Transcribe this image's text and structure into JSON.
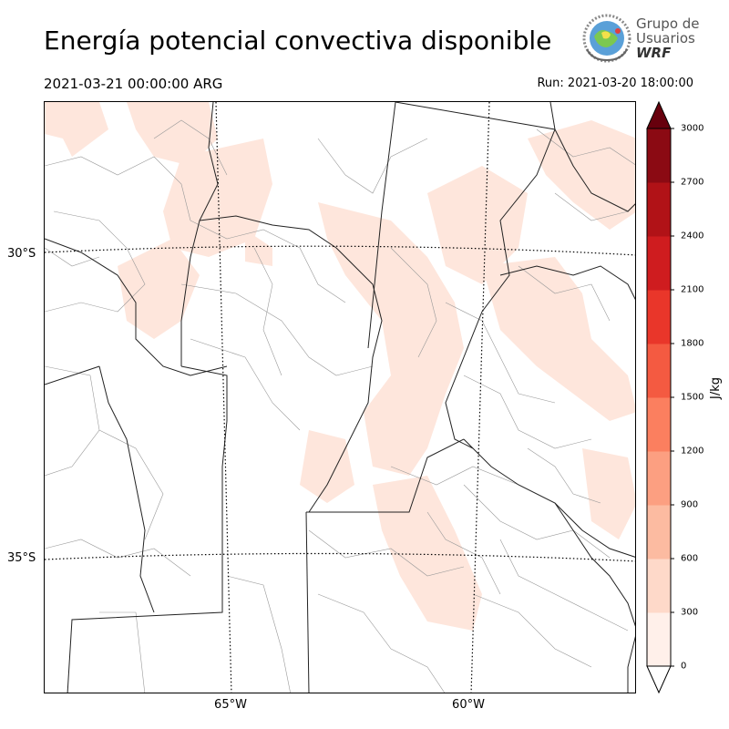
{
  "header": {
    "title": "Energía potencial convectiva disponible",
    "valid_time": "2021-03-21 00:00:00 ARG",
    "run_time": "Run: 2021-03-20 18:00:00"
  },
  "logo": {
    "line1": "Grupo de",
    "line2": "Usuarios",
    "line3": "WRF"
  },
  "map": {
    "lat_labels": [
      "30°S",
      "35°S"
    ],
    "lon_labels": [
      "65°W",
      "60°W"
    ],
    "field": "CAPE",
    "shading_color": "#fee6dc"
  },
  "colorbar": {
    "unit": "J/kg",
    "ticks": [
      "0",
      "300",
      "600",
      "900",
      "1200",
      "1500",
      "1800",
      "2100",
      "2400",
      "2700",
      "3000"
    ],
    "colors": [
      "#fff0ea",
      "#fed9c9",
      "#fcbba1",
      "#fc9f81",
      "#fb7f5f",
      "#f45a41",
      "#e9362a",
      "#cf1c1f",
      "#b11217",
      "#8b0a13"
    ],
    "extend_color": "#67000d"
  }
}
